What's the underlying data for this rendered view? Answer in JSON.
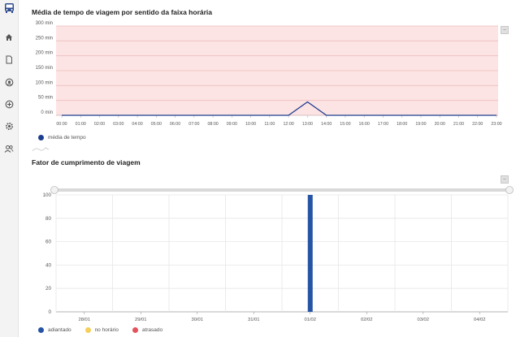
{
  "sidebar": {
    "items": [
      {
        "icon": "bus-icon"
      },
      {
        "icon": "home-icon"
      },
      {
        "icon": "document-icon"
      },
      {
        "icon": "dashboard-icon"
      },
      {
        "icon": "add-circle-icon"
      },
      {
        "icon": "settings-icon"
      },
      {
        "icon": "users-icon"
      }
    ],
    "accent": "#2e4a8f"
  },
  "chart_data": [
    {
      "type": "line",
      "title": "Média de tempo de viagem por sentido da faixa horária",
      "x": [
        "00:00",
        "01:00",
        "02:00",
        "03:00",
        "04:00",
        "05:00",
        "06:00",
        "07:00",
        "08:00",
        "09:00",
        "10:00",
        "11:00",
        "12:00",
        "13:00",
        "14:00",
        "15:00",
        "16:00",
        "17:00",
        "18:00",
        "19:00",
        "20:00",
        "21:00",
        "22:00",
        "23:00"
      ],
      "yticks": [
        "0 min",
        "50 min",
        "100 min",
        "150 min",
        "200 min",
        "250 min",
        "300 min"
      ],
      "ylim": [
        0,
        300
      ],
      "series": [
        {
          "name": "média de tempo",
          "color": "#1d3d8f",
          "values": [
            0,
            0,
            0,
            0,
            0,
            0,
            0,
            0,
            0,
            0,
            0,
            0,
            0,
            45,
            0,
            0,
            0,
            0,
            0,
            0,
            0,
            0,
            0,
            0
          ]
        }
      ],
      "background": "#fde4e4",
      "grid": true,
      "legend": "bottom-left"
    },
    {
      "type": "bar",
      "title": "Fator de cumprimento de viagem",
      "categories": [
        "28/01",
        "29/01",
        "30/01",
        "31/01",
        "01/02",
        "02/02",
        "03/02",
        "04/02"
      ],
      "yticks": [
        "0",
        "20",
        "40",
        "60",
        "80",
        "100"
      ],
      "ylim": [
        0,
        100
      ],
      "series": [
        {
          "name": "adiantado",
          "color": "#2553a6",
          "values": [
            0,
            0,
            0,
            0,
            100,
            0,
            0,
            0
          ]
        },
        {
          "name": "no horário",
          "color": "#f5cf5a",
          "values": [
            0,
            0,
            0,
            0,
            0,
            0,
            0,
            0
          ]
        },
        {
          "name": "atrasado",
          "color": "#e2535c",
          "values": [
            0,
            0,
            0,
            0,
            0,
            0,
            0,
            0
          ]
        }
      ],
      "grid": true,
      "legend": "bottom-left",
      "slider_range": [
        0,
        1
      ]
    }
  ],
  "controls": {
    "collapse_label": "–"
  }
}
